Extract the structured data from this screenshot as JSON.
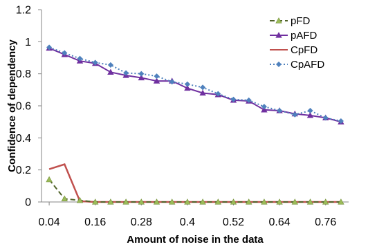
{
  "chart_data": {
    "type": "line",
    "xlabel": "Amount of noise in the data",
    "ylabel": "Confidence of dependency",
    "x": [
      0.04,
      0.08,
      0.12,
      0.16,
      0.2,
      0.24,
      0.28,
      0.32,
      0.36,
      0.4,
      0.44,
      0.48,
      0.52,
      0.56,
      0.6,
      0.64,
      0.68,
      0.72,
      0.76,
      0.8
    ],
    "xlim": [
      0.02,
      0.82
    ],
    "x_ticks": [
      "0.04",
      "0.16",
      "0.28",
      "0.4",
      "0.52",
      "0.64",
      "0.76"
    ],
    "x_tick_values": [
      0.04,
      0.16,
      0.28,
      0.4,
      0.52,
      0.64,
      0.76
    ],
    "ylim": [
      0,
      1.2
    ],
    "y_ticks": [
      "0",
      "0.2",
      "0.4",
      "0.6",
      "0.8",
      "1",
      "1.2"
    ],
    "y_tick_values": [
      0,
      0.2,
      0.4,
      0.6,
      0.8,
      1.0,
      1.2
    ],
    "legend_position": "top-right",
    "grid": false,
    "series": [
      {
        "name": "pFD",
        "color": "#4f6228",
        "marker": "triangle-green",
        "dash": "dashed",
        "values": [
          0.14,
          0.02,
          0.01,
          0,
          0,
          0,
          0,
          0,
          0,
          0,
          0,
          0,
          0,
          0,
          0,
          0,
          0,
          0,
          0,
          0
        ]
      },
      {
        "name": "pAFD",
        "color": "#7030a0",
        "marker": "triangle",
        "dash": "solid",
        "values": [
          0.96,
          0.92,
          0.88,
          0.865,
          0.81,
          0.79,
          0.775,
          0.755,
          0.755,
          0.71,
          0.68,
          0.67,
          0.635,
          0.63,
          0.575,
          0.57,
          0.55,
          0.54,
          0.525,
          0.5
        ]
      },
      {
        "name": "CpFD",
        "color": "#c0504d",
        "marker": "none",
        "dash": "solid",
        "values": [
          0.205,
          0.235,
          0.005,
          0,
          0,
          0,
          0,
          0,
          0,
          0,
          0,
          0,
          0,
          0,
          0,
          0,
          0,
          0,
          0,
          0
        ]
      },
      {
        "name": "CpAFD",
        "color": "#4f81bd",
        "marker": "diamond",
        "dash": "dotted",
        "values": [
          0.965,
          0.93,
          0.895,
          0.87,
          0.855,
          0.805,
          0.8,
          0.785,
          0.75,
          0.735,
          0.715,
          0.675,
          0.64,
          0.635,
          0.595,
          0.57,
          0.545,
          0.57,
          0.525,
          0.505
        ]
      }
    ]
  }
}
